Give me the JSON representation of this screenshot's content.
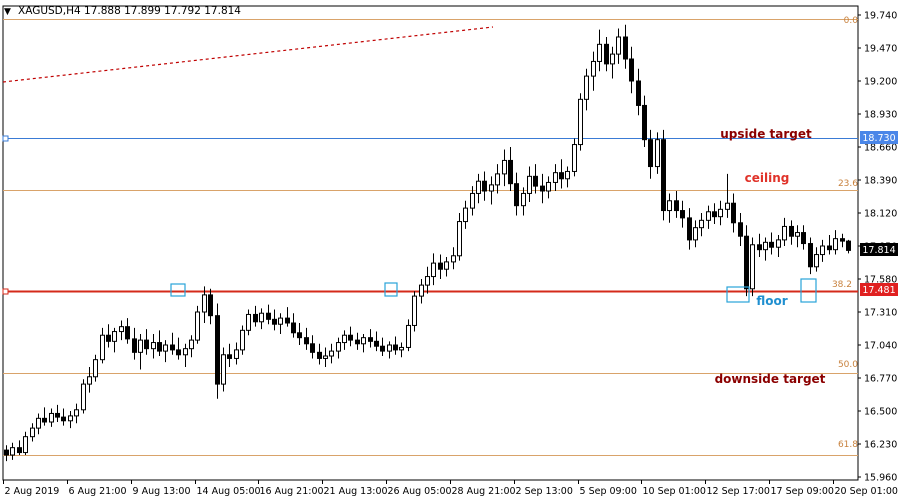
{
  "header": {
    "symbol_text": "XAGUSD,H4  17.888 17.899 17.792 17.814"
  },
  "colors": {
    "background": "#ffffff",
    "frame": "#000000",
    "candle": "#000000",
    "fib_line": "#d9a36a",
    "fib_label": "#c8823e",
    "horizontal_blue": "#3a7bd5",
    "horizontal_red": "#d42a1a",
    "annotation_text": "#8b0000",
    "floor_text": "#1f8fd0",
    "highlight_box": "#29a3d9",
    "trend_dotted": "#c00000",
    "current_price_tag": "#000000",
    "blue_price_tag": "#4a86e8",
    "red_price_tag": "#e02020"
  },
  "price_axis": {
    "ticks": [
      "19.740",
      "19.470",
      "19.200",
      "18.930",
      "18.660",
      "18.390",
      "18.120",
      "17.850",
      "17.580",
      "17.310",
      "17.040",
      "16.770",
      "16.500",
      "16.230",
      "15.960"
    ],
    "tags": {
      "blue": "18.730",
      "current": "17.814",
      "red": "17.481"
    }
  },
  "time_axis": {
    "labels": [
      "2 Aug 2019",
      "6 Aug 21:00",
      "9 Aug 13:00",
      "14 Aug 05:00",
      "16 Aug 21:00",
      "21 Aug 13:00",
      "26 Aug 05:00",
      "28 Aug 21:00",
      "2 Sep 13:00",
      "5 Sep 09:00",
      "10 Sep 01:00",
      "12 Sep 17:00",
      "17 Sep 09:00",
      "20 Sep 01:00"
    ]
  },
  "annotations": {
    "upside_target": "upside target",
    "ceiling": "ceiling",
    "floor": "floor",
    "downside_target": "downside target"
  },
  "fib_labels": {
    "fib_0": "0.0",
    "fib_236": "23.6",
    "fib_382": "38.2",
    "fib_50": "50.0",
    "fib_618": "61.8"
  },
  "chart_data": {
    "type": "candlestick",
    "symbol": "XAGUSD",
    "timeframe": "H4",
    "header_ohlc": {
      "open": 17.888,
      "high": 17.899,
      "low": 17.792,
      "close": 17.814
    },
    "ylim": [
      15.96,
      19.74
    ],
    "fibonacci": [
      {
        "level": "0.0",
        "price": 19.705
      },
      {
        "level": "23.6",
        "price": 18.31
      },
      {
        "level": "38.2",
        "price": 17.481
      },
      {
        "level": "50.0",
        "price": 16.81
      },
      {
        "level": "61.8",
        "price": 16.14
      }
    ],
    "horizontal_lines": [
      {
        "label": "upside target",
        "price": 18.73
      },
      {
        "label": "floor",
        "price": 17.481
      }
    ],
    "candles": [
      [
        16.18,
        16.22,
        16.09,
        16.14
      ],
      [
        16.14,
        16.24,
        16.1,
        16.2
      ],
      [
        16.2,
        16.26,
        16.14,
        16.16
      ],
      [
        16.16,
        16.33,
        16.14,
        16.29
      ],
      [
        16.29,
        16.4,
        16.25,
        16.36
      ],
      [
        16.36,
        16.48,
        16.31,
        16.44
      ],
      [
        16.44,
        16.53,
        16.38,
        16.41
      ],
      [
        16.41,
        16.52,
        16.37,
        16.48
      ],
      [
        16.48,
        16.55,
        16.41,
        16.45
      ],
      [
        16.45,
        16.52,
        16.38,
        16.42
      ],
      [
        16.42,
        16.5,
        16.36,
        16.46
      ],
      [
        16.46,
        16.56,
        16.4,
        16.51
      ],
      [
        16.51,
        16.76,
        16.48,
        16.72
      ],
      [
        16.72,
        16.86,
        16.65,
        16.78
      ],
      [
        16.78,
        16.96,
        16.74,
        16.92
      ],
      [
        16.92,
        17.18,
        16.89,
        17.12
      ],
      [
        17.12,
        17.21,
        17.02,
        17.07
      ],
      [
        17.07,
        17.18,
        16.98,
        17.15
      ],
      [
        17.15,
        17.24,
        17.08,
        17.19
      ],
      [
        17.19,
        17.26,
        17.05,
        17.09
      ],
      [
        17.09,
        17.18,
        16.92,
        16.98
      ],
      [
        16.98,
        17.13,
        16.84,
        17.08
      ],
      [
        17.08,
        17.17,
        16.96,
        17.01
      ],
      [
        17.01,
        17.13,
        16.93,
        17.06
      ],
      [
        17.06,
        17.16,
        16.95,
        16.99
      ],
      [
        16.99,
        17.08,
        16.9,
        17.04
      ],
      [
        17.04,
        17.14,
        16.96,
        17.0
      ],
      [
        17.0,
        17.1,
        16.92,
        16.96
      ],
      [
        16.96,
        17.05,
        16.86,
        17.01
      ],
      [
        17.01,
        17.12,
        16.94,
        17.08
      ],
      [
        17.08,
        17.36,
        17.05,
        17.31
      ],
      [
        17.31,
        17.52,
        17.22,
        17.45
      ],
      [
        17.45,
        17.5,
        17.21,
        17.28
      ],
      [
        17.28,
        17.38,
        16.6,
        16.72
      ],
      [
        16.72,
        17.02,
        16.66,
        16.96
      ],
      [
        16.96,
        17.05,
        16.86,
        16.93
      ],
      [
        16.93,
        17.06,
        16.88,
        17.0
      ],
      [
        17.0,
        17.2,
        16.96,
        17.16
      ],
      [
        17.16,
        17.33,
        17.12,
        17.29
      ],
      [
        17.29,
        17.36,
        17.19,
        17.23
      ],
      [
        17.23,
        17.34,
        17.17,
        17.3
      ],
      [
        17.3,
        17.37,
        17.21,
        17.25
      ],
      [
        17.25,
        17.33,
        17.16,
        17.21
      ],
      [
        17.21,
        17.3,
        17.13,
        17.26
      ],
      [
        17.26,
        17.35,
        17.19,
        17.22
      ],
      [
        17.22,
        17.3,
        17.1,
        17.14
      ],
      [
        17.14,
        17.22,
        17.04,
        17.1
      ],
      [
        17.1,
        17.18,
        17.0,
        17.05
      ],
      [
        17.05,
        17.12,
        16.93,
        16.98
      ],
      [
        16.98,
        17.05,
        16.88,
        16.93
      ],
      [
        16.93,
        17.02,
        16.86,
        16.95
      ],
      [
        16.95,
        17.05,
        16.89,
        16.99
      ],
      [
        16.99,
        17.1,
        16.93,
        17.06
      ],
      [
        17.06,
        17.16,
        17.0,
        17.12
      ],
      [
        17.12,
        17.19,
        17.03,
        17.08
      ],
      [
        17.08,
        17.14,
        17.0,
        17.05
      ],
      [
        17.05,
        17.13,
        16.98,
        17.1
      ],
      [
        17.1,
        17.17,
        17.02,
        17.07
      ],
      [
        17.07,
        17.15,
        16.99,
        17.03
      ],
      [
        17.03,
        17.1,
        16.95,
        16.99
      ],
      [
        16.99,
        17.07,
        16.93,
        17.04
      ],
      [
        17.04,
        17.11,
        16.96,
        17.0
      ],
      [
        17.0,
        17.06,
        16.94,
        17.02
      ],
      [
        17.02,
        17.25,
        16.99,
        17.2
      ],
      [
        17.2,
        17.48,
        17.15,
        17.44
      ],
      [
        17.44,
        17.58,
        17.38,
        17.53
      ],
      [
        17.53,
        17.68,
        17.46,
        17.6
      ],
      [
        17.6,
        17.79,
        17.53,
        17.71
      ],
      [
        17.71,
        17.78,
        17.58,
        17.66
      ],
      [
        17.66,
        17.76,
        17.6,
        17.72
      ],
      [
        17.72,
        17.84,
        17.66,
        17.77
      ],
      [
        17.77,
        18.12,
        17.73,
        18.05
      ],
      [
        18.05,
        18.22,
        17.99,
        18.16
      ],
      [
        18.16,
        18.34,
        18.1,
        18.28
      ],
      [
        18.28,
        18.44,
        18.2,
        18.38
      ],
      [
        18.38,
        18.46,
        18.22,
        18.3
      ],
      [
        18.3,
        18.42,
        18.19,
        18.35
      ],
      [
        18.35,
        18.52,
        18.28,
        18.44
      ],
      [
        18.44,
        18.64,
        18.34,
        18.55
      ],
      [
        18.55,
        18.66,
        18.3,
        18.36
      ],
      [
        18.36,
        18.45,
        18.1,
        18.18
      ],
      [
        18.18,
        18.33,
        18.1,
        18.28
      ],
      [
        18.28,
        18.5,
        18.21,
        18.42
      ],
      [
        18.42,
        18.52,
        18.28,
        18.34
      ],
      [
        18.34,
        18.44,
        18.2,
        18.3
      ],
      [
        18.3,
        18.42,
        18.24,
        18.37
      ],
      [
        18.37,
        18.52,
        18.3,
        18.45
      ],
      [
        18.45,
        18.56,
        18.32,
        18.4
      ],
      [
        18.4,
        18.5,
        18.33,
        18.46
      ],
      [
        18.46,
        18.73,
        18.42,
        18.68
      ],
      [
        18.68,
        19.1,
        18.63,
        19.05
      ],
      [
        19.05,
        19.3,
        18.96,
        19.24
      ],
      [
        19.24,
        19.44,
        19.12,
        19.36
      ],
      [
        19.36,
        19.62,
        19.28,
        19.5
      ],
      [
        19.5,
        19.56,
        19.28,
        19.34
      ],
      [
        19.34,
        19.48,
        19.22,
        19.42
      ],
      [
        19.42,
        19.63,
        19.34,
        19.56
      ],
      [
        19.56,
        19.66,
        19.3,
        19.38
      ],
      [
        19.38,
        19.48,
        19.1,
        19.2
      ],
      [
        19.2,
        19.3,
        18.92,
        19.0
      ],
      [
        19.0,
        19.08,
        18.66,
        18.72
      ],
      [
        18.72,
        18.8,
        18.4,
        18.5
      ],
      [
        18.5,
        18.78,
        18.44,
        18.72
      ],
      [
        18.72,
        18.8,
        18.06,
        18.14
      ],
      [
        18.14,
        18.28,
        18.04,
        18.22
      ],
      [
        18.22,
        18.3,
        18.08,
        18.14
      ],
      [
        18.14,
        18.22,
        18.0,
        18.08
      ],
      [
        18.08,
        18.16,
        17.82,
        17.9
      ],
      [
        17.9,
        18.06,
        17.84,
        18.0
      ],
      [
        18.0,
        18.12,
        17.93,
        18.06
      ],
      [
        18.06,
        18.18,
        17.99,
        18.13
      ],
      [
        18.13,
        18.2,
        18.03,
        18.09
      ],
      [
        18.09,
        18.22,
        18.02,
        18.15
      ],
      [
        18.15,
        18.44,
        18.08,
        18.2
      ],
      [
        18.2,
        18.28,
        17.96,
        18.04
      ],
      [
        18.04,
        18.12,
        17.85,
        17.93
      ],
      [
        17.93,
        18.02,
        17.44,
        17.5
      ],
      [
        17.5,
        17.92,
        17.44,
        17.86
      ],
      [
        17.86,
        17.95,
        17.76,
        17.82
      ],
      [
        17.82,
        17.92,
        17.73,
        17.88
      ],
      [
        17.88,
        17.96,
        17.78,
        17.84
      ],
      [
        17.84,
        17.94,
        17.76,
        17.9
      ],
      [
        17.9,
        18.08,
        17.85,
        18.01
      ],
      [
        18.01,
        18.06,
        17.86,
        17.93
      ],
      [
        17.93,
        18.02,
        17.84,
        17.96
      ],
      [
        17.96,
        18.02,
        17.82,
        17.87
      ],
      [
        17.87,
        17.92,
        17.62,
        17.68
      ],
      [
        17.68,
        17.84,
        17.64,
        17.78
      ],
      [
        17.78,
        17.9,
        17.72,
        17.85
      ],
      [
        17.85,
        17.94,
        17.78,
        17.82
      ],
      [
        17.82,
        17.98,
        17.78,
        17.91
      ],
      [
        17.91,
        17.95,
        17.84,
        17.89
      ],
      [
        17.89,
        17.9,
        17.79,
        17.814
      ]
    ]
  }
}
